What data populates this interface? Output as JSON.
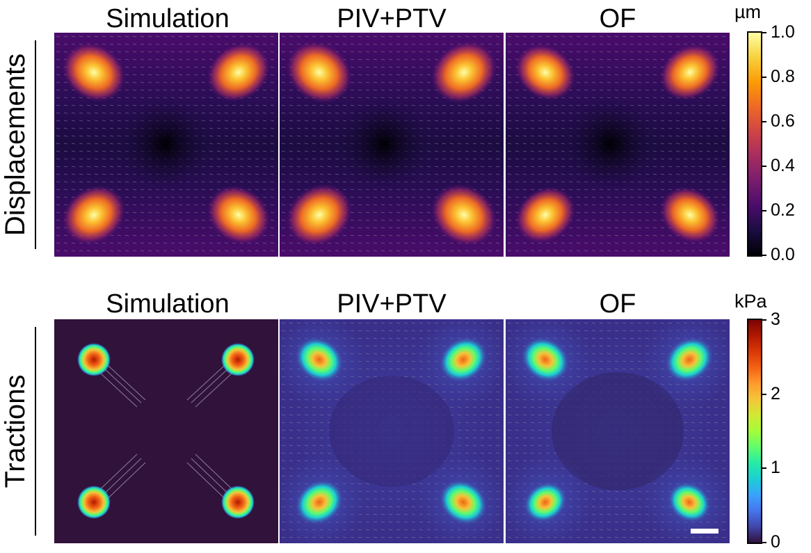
{
  "columns": [
    "Simulation",
    "PIV+PTV",
    "OF"
  ],
  "rows": [
    {
      "label": "Displacements",
      "unit": "µm",
      "ticks": [
        "1.0",
        "0.8",
        "0.6",
        "0.4",
        "0.2",
        "0.0"
      ],
      "colormap": "inferno"
    },
    {
      "label": "Tractions",
      "unit": "kPa",
      "ticks": [
        "3",
        "2",
        "1",
        "0"
      ],
      "colormap": "jet"
    }
  ],
  "colors": {
    "inferno": [
      "#000004",
      "#1b0c41",
      "#4a0c6b",
      "#781c6d",
      "#a52c60",
      "#cf4446",
      "#ed6925",
      "#fb9b06",
      "#f7d13d",
      "#fcffa4"
    ],
    "jet": [
      "#30123b",
      "#4145ab",
      "#4675ed",
      "#39a2fc",
      "#1bcfd4",
      "#24eca6",
      "#61fc6c",
      "#a4fc3b",
      "#d1e834",
      "#f3c63a",
      "#fe9b2d",
      "#f36315",
      "#d93806",
      "#b11901",
      "#7a0403"
    ]
  },
  "scale_bar": "scale-bar"
}
